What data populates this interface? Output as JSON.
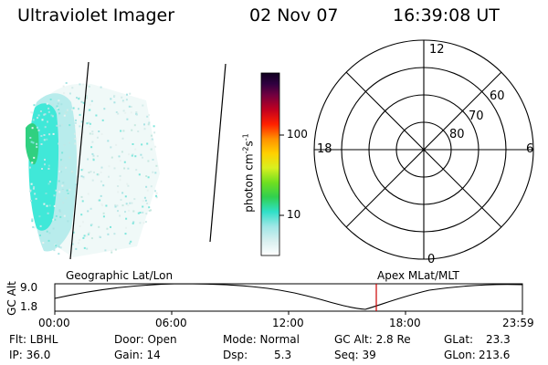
{
  "header": {
    "instrument": "Ultraviolet Imager",
    "date": "02 Nov 07",
    "time": "16:39:08 UT"
  },
  "colorbar": {
    "unit_label": "photon cm-2s-1",
    "ticks": [
      "100",
      "10"
    ]
  },
  "polar_grid": {
    "mlt_labels": [
      "12",
      "18",
      "6",
      "0"
    ],
    "lat_labels": [
      "60",
      "70",
      "80"
    ]
  },
  "panel_labels": {
    "left": "Geographic Lat/Lon",
    "right": "Apex MLat/MLT"
  },
  "timeline": {
    "ylabel": "GC Alt",
    "yticks": [
      "9.0",
      "1.8"
    ],
    "x_ticks": [
      "00:00",
      "06:00",
      "12:00",
      "18:00",
      "23:59"
    ],
    "current_time_marker_color": "#cc0000"
  },
  "status": {
    "flt": "Flt: LBHL",
    "ip": "IP: 36.0",
    "door": "Door: Open",
    "gain": "Gain: 14",
    "mode": "Mode: Normal",
    "dsp_label": "Dsp:",
    "dsp_value": "5.3",
    "gc_alt": "GC Alt: 2.8 Re",
    "seq": "Seq: 39",
    "glat_label": "GLat:",
    "glat_value": "23.3",
    "glon_label": "GLon:",
    "glon_value": "213.6"
  },
  "colors": {
    "aurora_cyan": "#40e8d8",
    "aurora_green": "#30d080",
    "aurora_pale": "#c8ecec"
  }
}
